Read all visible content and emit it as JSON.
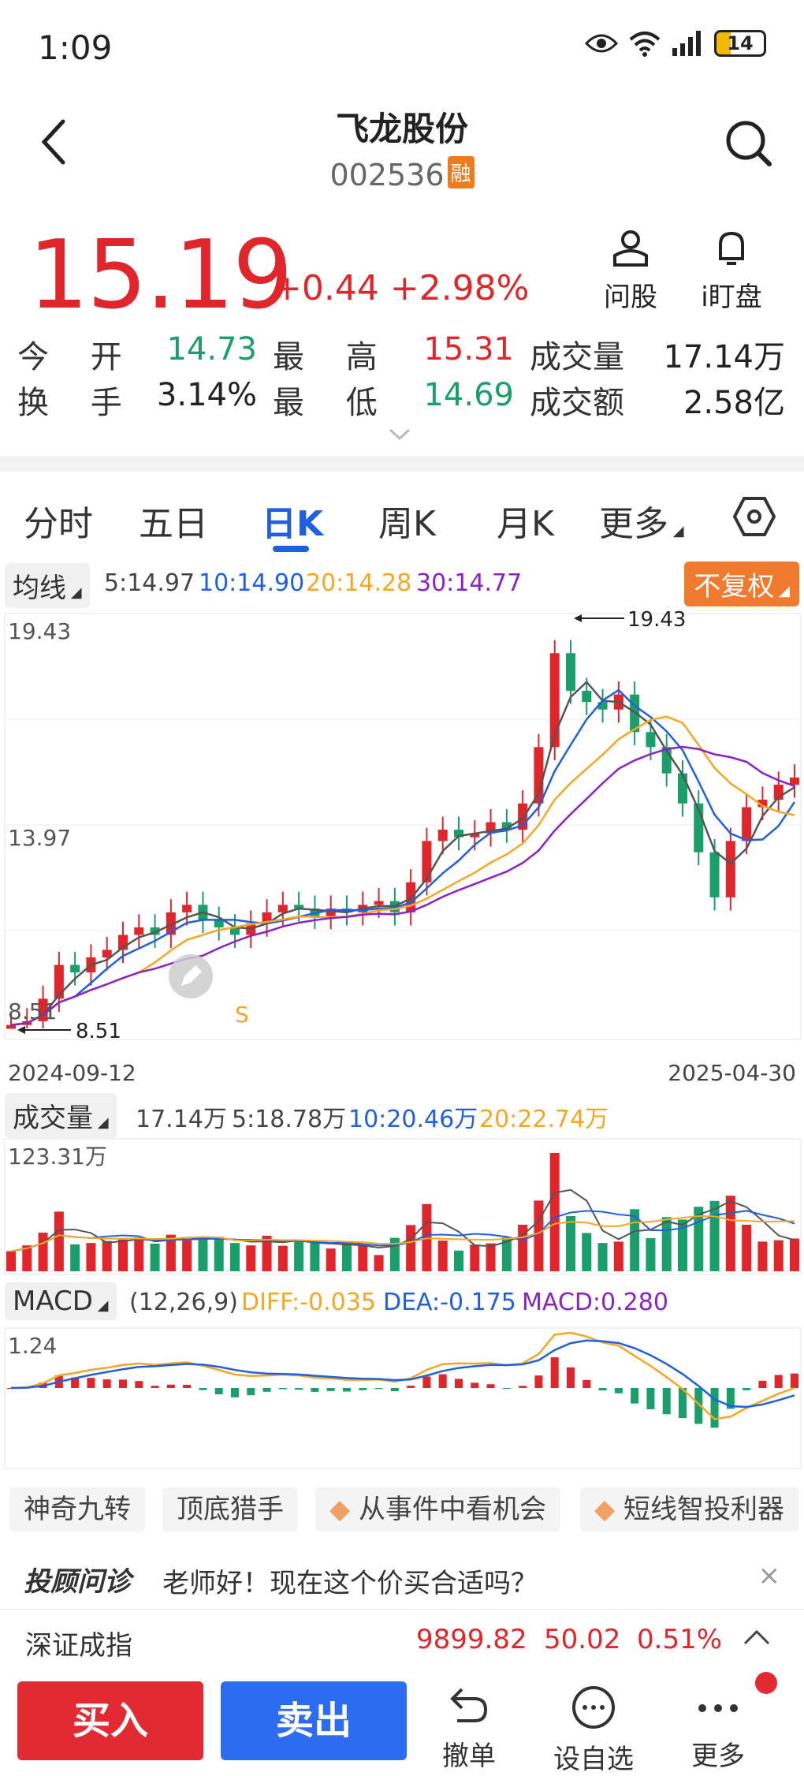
{
  "status": {
    "time": "1:09",
    "battery": "14"
  },
  "header": {
    "title": "飞龙股份",
    "code": "002536",
    "badge": "融"
  },
  "price": {
    "last": "15.19",
    "change": "+0.44 +2.98%"
  },
  "top_actions": [
    {
      "label": "问股",
      "icon": "person-icon"
    },
    {
      "label": "i盯盘",
      "icon": "bell-icon"
    }
  ],
  "quote": {
    "open_label": "今 开",
    "open": "14.73",
    "high_label": "最 高",
    "high": "15.31",
    "vol_label": "成交量",
    "vol": "17.14万",
    "turn_label": "换 手",
    "turn": "3.14%",
    "low_label": "最 低",
    "low": "14.69",
    "amt_label": "成交额",
    "amt": "2.58亿"
  },
  "tabs": [
    "分时",
    "五日",
    "日K",
    "周K",
    "月K",
    "更多"
  ],
  "active_tab": "日K",
  "ma": {
    "label": "均线",
    "ma5": "5:14.97",
    "ma10": "10:14.90",
    "ma20": "20:14.28",
    "ma30": "30:14.77",
    "fq": "不复权"
  },
  "kline": {
    "y_top": "19.43",
    "y_mid": "13.97",
    "y_bot": "8.51",
    "max_label": "19.43",
    "min_label": "8.51",
    "signal": "S",
    "date_start": "2024-09-12",
    "date_end": "2025-04-30"
  },
  "volume": {
    "label": "成交量",
    "cur": "17.14万",
    "ma5": "5:18.78万",
    "ma10": "10:20.46万",
    "ma20": "20:22.74万",
    "ymax": "123.31万"
  },
  "macd": {
    "label": "MACD",
    "params": "(12,26,9)",
    "diff": "DIFF:-0.035",
    "dea": "DEA:-0.175",
    "macd": "MACD:0.280",
    "ymax": "1.24"
  },
  "tags": [
    "神奇九转",
    "顶底猎手",
    "从事件中看机会",
    "短线智投利器"
  ],
  "adviser": {
    "brand": "投顾问诊",
    "text": "老师好！现在这个价买合适吗？"
  },
  "index": {
    "name": "深证成指",
    "value": "9899.82",
    "change": "50.02",
    "pct": "0.51%"
  },
  "actions": {
    "buy": "买入",
    "sell": "卖出",
    "cancel": "撤单",
    "watch": "设自选",
    "more": "更多"
  },
  "colors": {
    "up": "#e0252b",
    "down": "#1a9e6a",
    "accent": "#1f5fe0",
    "ma5": "#555555",
    "ma10": "#1f5fe0",
    "ma20": "#f5a623",
    "ma30": "#8a22c8"
  },
  "chart_data": {
    "type": "candlestick",
    "title": "",
    "x_range": [
      "2024-09-12",
      "2025-04-30"
    ],
    "ylim": [
      8.51,
      19.43
    ],
    "close_approx": [
      8.6,
      8.7,
      9.3,
      10.2,
      10.0,
      10.4,
      10.6,
      11.0,
      11.2,
      11.0,
      11.6,
      11.8,
      11.4,
      11.2,
      11.0,
      11.3,
      11.6,
      11.8,
      11.7,
      11.5,
      11.7,
      11.6,
      11.8,
      11.9,
      11.6,
      12.4,
      13.5,
      13.8,
      13.6,
      13.7,
      14.0,
      13.8,
      14.5,
      16.0,
      18.5,
      17.5,
      17.2,
      17.0,
      17.4,
      16.4,
      16.0,
      15.3,
      14.5,
      13.2,
      12.0,
      13.5,
      14.4,
      14.6,
      15.0,
      15.19
    ],
    "ma_values": {
      "MA5": 14.97,
      "MA10": 14.9,
      "MA20": 14.28,
      "MA30": 14.77
    }
  }
}
